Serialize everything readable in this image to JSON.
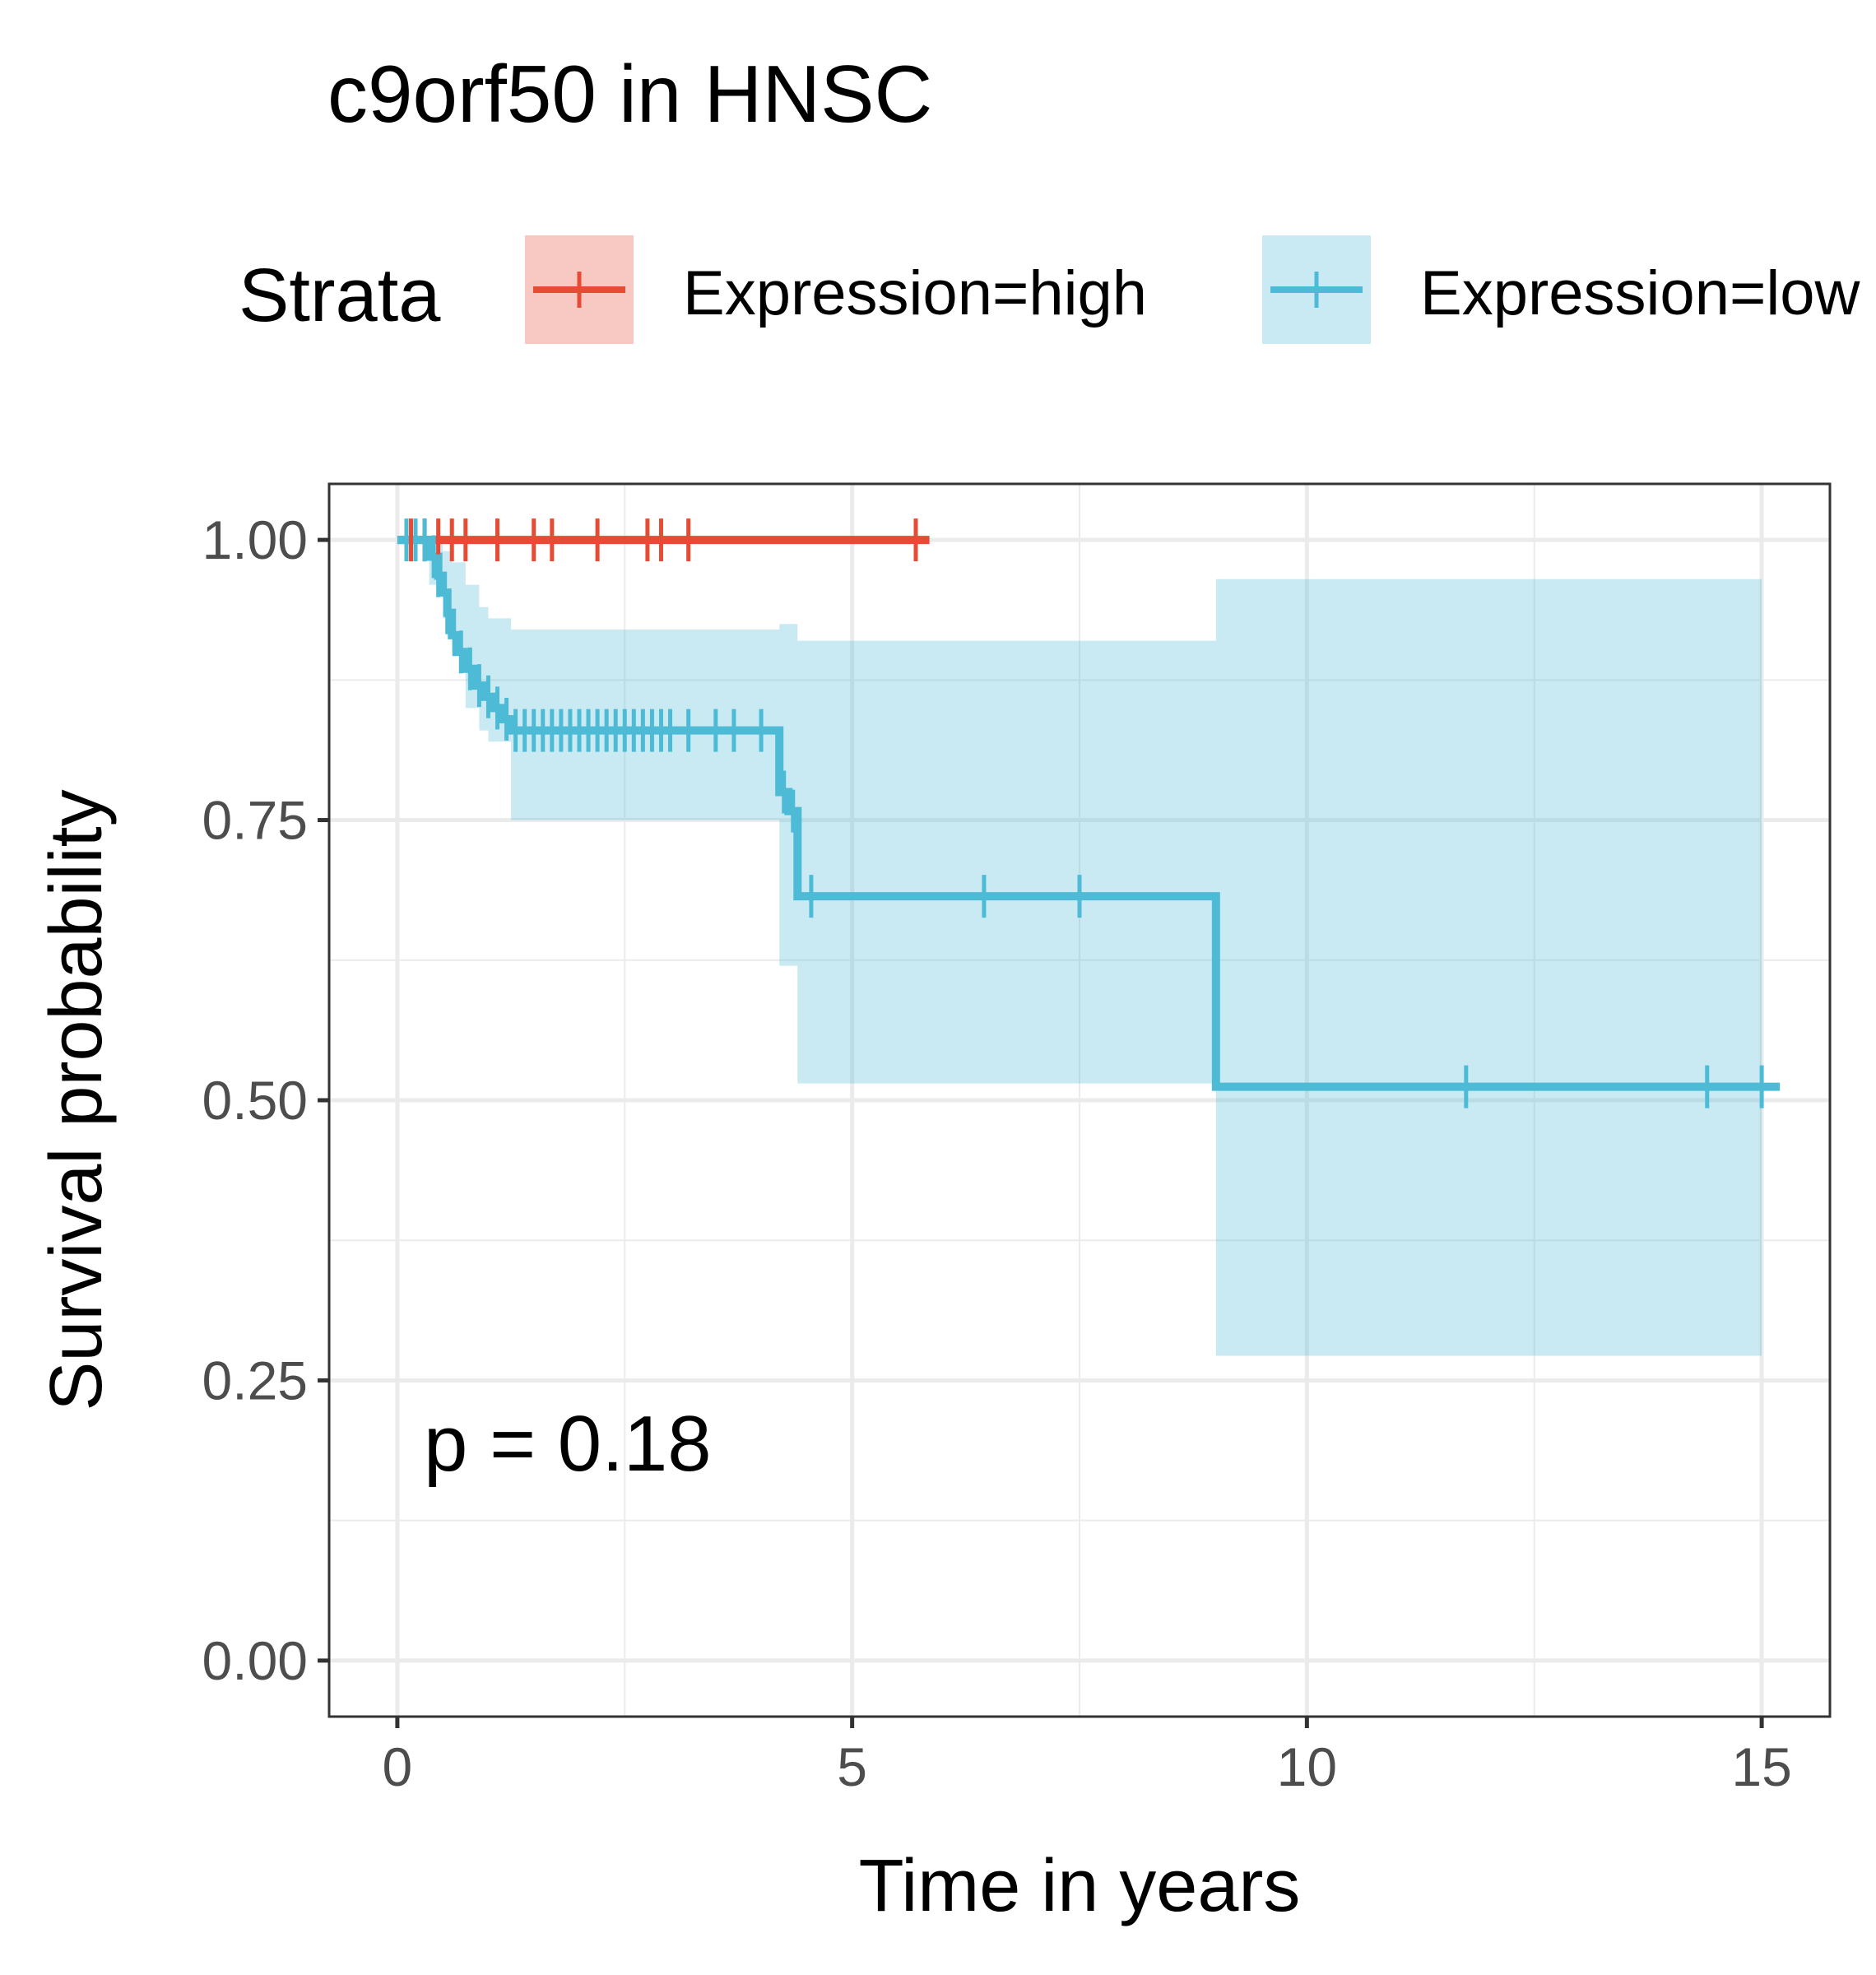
{
  "chart_data": {
    "type": "line",
    "subtype": "kaplan-meier",
    "title": "c9orf50 in HNSC",
    "xlabel": "Time in years",
    "ylabel": "Survival probability",
    "xlim": [
      -0.75,
      15.75
    ],
    "ylim": [
      -0.05,
      1.05
    ],
    "x_ticks": [
      0,
      5,
      10,
      15
    ],
    "x_tick_labels": [
      "0",
      "5",
      "10",
      "15"
    ],
    "y_ticks": [
      0,
      0.25,
      0.5,
      0.75,
      1.0
    ],
    "y_tick_labels": [
      "0.00",
      "0.25",
      "0.50",
      "0.75",
      "1.00"
    ],
    "grid": true,
    "legend": {
      "title": "Strata",
      "position": "top",
      "entries": [
        "Expression=high",
        "Expression=low"
      ]
    },
    "annotation": "p = 0.18",
    "series": [
      {
        "name": "Expression=high",
        "color": "#E64B35",
        "steps": [
          [
            0,
            1.0
          ],
          [
            5.85,
            1.0
          ]
        ],
        "ci": [],
        "censor_times": [
          0.15,
          0.3,
          0.45,
          0.6,
          0.75,
          1.1,
          1.5,
          1.7,
          2.2,
          2.75,
          2.9,
          3.2,
          5.7
        ]
      },
      {
        "name": "Expression=low",
        "color": "#4DBBD5",
        "steps": [
          [
            0,
            1.0
          ],
          [
            0.35,
            0.985
          ],
          [
            0.45,
            0.968
          ],
          [
            0.5,
            0.953
          ],
          [
            0.55,
            0.935
          ],
          [
            0.6,
            0.915
          ],
          [
            0.65,
            0.9
          ],
          [
            0.75,
            0.885
          ],
          [
            0.85,
            0.87
          ],
          [
            0.95,
            0.86
          ],
          [
            1.05,
            0.85
          ],
          [
            1.15,
            0.84
          ],
          [
            1.25,
            0.83
          ],
          [
            4.2,
            0.775
          ],
          [
            4.3,
            0.758
          ],
          [
            4.4,
            0.682
          ],
          [
            9.0,
            0.512
          ],
          [
            15.2,
            0.512
          ]
        ],
        "ci": [
          [
            0,
            1.0,
            1.0
          ],
          [
            0.35,
            1.0,
            0.96
          ],
          [
            0.5,
            0.99,
            0.93
          ],
          [
            0.6,
            0.98,
            0.9
          ],
          [
            0.75,
            0.96,
            0.85
          ],
          [
            0.9,
            0.94,
            0.83
          ],
          [
            1.0,
            0.93,
            0.82
          ],
          [
            1.25,
            0.92,
            0.75
          ],
          [
            4.2,
            0.925,
            0.62
          ],
          [
            4.4,
            0.91,
            0.515
          ],
          [
            9.0,
            0.965,
            0.272
          ],
          [
            15.0,
            0.965,
            0.272
          ]
        ],
        "censor_times": [
          0.1,
          0.2,
          0.3,
          0.4,
          0.45,
          0.55,
          0.7,
          0.8,
          0.9,
          1.0,
          1.1,
          1.2,
          1.3,
          1.4,
          1.5,
          1.6,
          1.7,
          1.8,
          1.9,
          2.0,
          2.1,
          2.2,
          2.3,
          2.4,
          2.5,
          2.6,
          2.7,
          2.8,
          2.9,
          3.0,
          3.2,
          3.5,
          3.7,
          4.0,
          4.25,
          4.35,
          4.55,
          6.45,
          7.5,
          11.75,
          14.4,
          15.0
        ]
      }
    ]
  }
}
